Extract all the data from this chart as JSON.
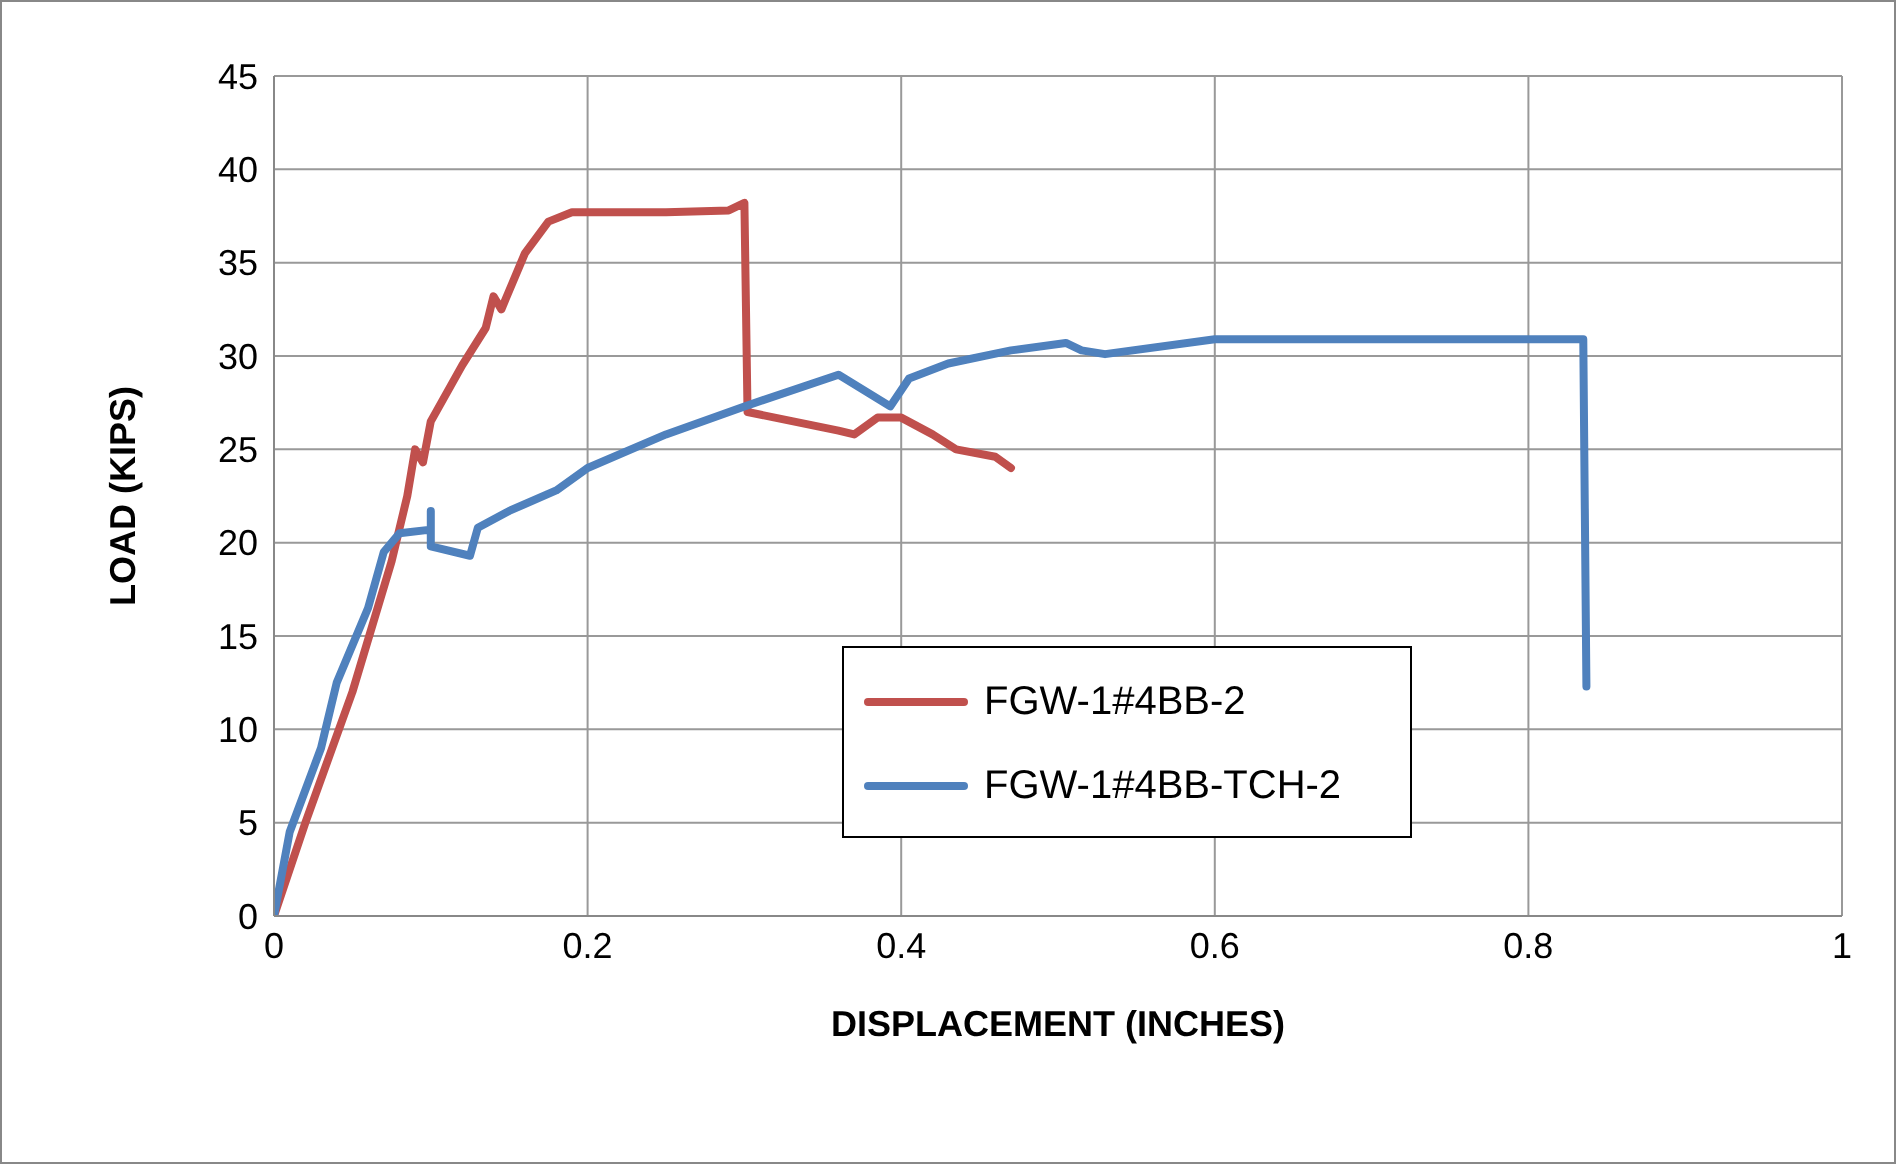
{
  "chart_data": {
    "type": "line",
    "xlabel": "DISPLACEMENT (INCHES)",
    "ylabel": "LOAD (KIPS)",
    "xlim": [
      0,
      1
    ],
    "xticks": [
      0,
      0.2,
      0.4,
      0.6,
      0.8,
      1
    ],
    "ylim": [
      0,
      45
    ],
    "yticks": [
      0,
      5,
      10,
      15,
      20,
      25,
      30,
      35,
      40,
      45
    ],
    "grid": true,
    "legend": "bottom",
    "marker": "none",
    "line_style": "solid",
    "series": [
      {
        "name": "FGW-1#4BB-2",
        "color": "#c0504d",
        "x": [
          0,
          0.02,
          0.05,
          0.075,
          0.085,
          0.09,
          0.095,
          0.1,
          0.12,
          0.135,
          0.14,
          0.145,
          0.16,
          0.175,
          0.19,
          0.25,
          0.29,
          0.3,
          0.302,
          0.36,
          0.37,
          0.385,
          0.4,
          0.42,
          0.435,
          0.46,
          0.47
        ],
        "values": [
          0,
          5,
          12,
          19,
          22.5,
          25,
          24.3,
          26.5,
          29.5,
          31.5,
          33.2,
          32.5,
          35.5,
          37.2,
          37.7,
          37.7,
          37.8,
          38.2,
          27,
          26,
          25.8,
          26.7,
          26.7,
          25.8,
          25,
          24.6,
          24
        ]
      },
      {
        "name": "FGW-1#4BB-TCH-2",
        "color": "#4f81bd",
        "x": [
          0,
          0.01,
          0.03,
          0.04,
          0.06,
          0.07,
          0.08,
          0.1,
          0.1,
          0.1,
          0.125,
          0.13,
          0.15,
          0.18,
          0.2,
          0.25,
          0.3,
          0.36,
          0.393,
          0.405,
          0.43,
          0.47,
          0.505,
          0.515,
          0.53,
          0.6,
          0.835,
          0.837
        ],
        "values": [
          0,
          4.5,
          9,
          12.5,
          16.5,
          19.5,
          20.5,
          20.7,
          21.7,
          19.8,
          19.3,
          20.8,
          21.7,
          22.8,
          24,
          25.8,
          27.3,
          29,
          27.3,
          28.8,
          29.6,
          30.3,
          30.7,
          30.3,
          30.1,
          30.9,
          30.9,
          12.3
        ]
      }
    ]
  }
}
